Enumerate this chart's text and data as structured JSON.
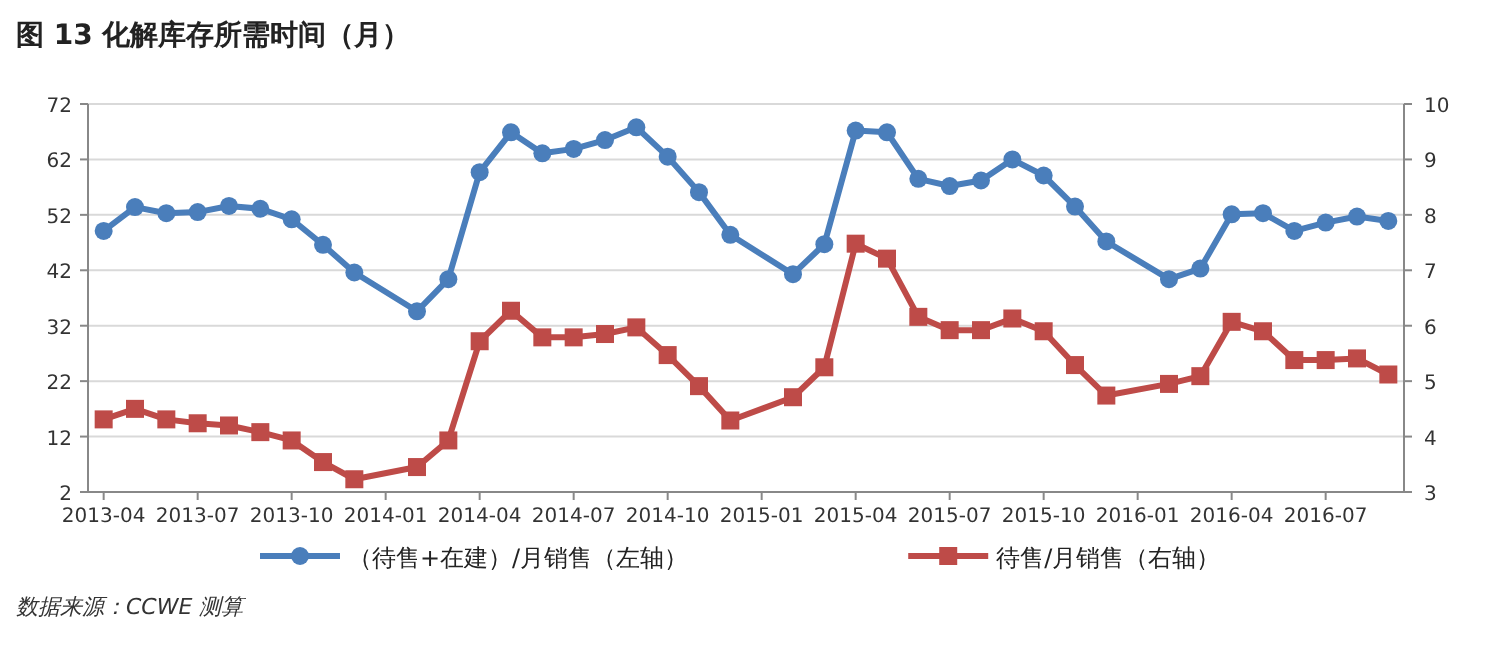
{
  "chart_data": {
    "type": "line",
    "title": "图 13 化解库存所需时间（月）",
    "x": [
      "2013-04",
      "2013-05",
      "2013-06",
      "2013-07",
      "2013-08",
      "2013-09",
      "2013-10",
      "2013-11",
      "2013-12",
      "2014-02",
      "2014-03",
      "2014-04",
      "2014-05",
      "2014-06",
      "2014-07",
      "2014-08",
      "2014-09",
      "2014-10",
      "2014-11",
      "2014-12",
      "2015-02",
      "2015-03",
      "2015-04",
      "2015-05",
      "2015-06",
      "2015-07",
      "2015-08",
      "2015-09",
      "2015-10",
      "2015-11",
      "2015-12",
      "2016-02",
      "2016-03",
      "2016-04",
      "2016-05",
      "2016-06",
      "2016-07",
      "2016-08",
      "2016-09"
    ],
    "xlim": [
      "2013-03-16",
      "2016-09-16"
    ],
    "xticks": [
      {
        "value": "2013-04",
        "label": "2013-04"
      },
      {
        "value": "2013-07",
        "label": "2013-07"
      },
      {
        "value": "2013-10",
        "label": "2013-10"
      },
      {
        "value": "2014-01",
        "label": "2014-01"
      },
      {
        "value": "2014-04",
        "label": "2014-04"
      },
      {
        "value": "2014-07",
        "label": "2014-07"
      },
      {
        "value": "2014-10",
        "label": "2014-10"
      },
      {
        "value": "2015-01",
        "label": "2015-01"
      },
      {
        "value": "2015-04",
        "label": "2015-04"
      },
      {
        "value": "2015-07",
        "label": "2015-07"
      },
      {
        "value": "2015-10",
        "label": "2015-10"
      },
      {
        "value": "2016-01",
        "label": "2016-01"
      },
      {
        "value": "2016-04",
        "label": "2016-04"
      },
      {
        "value": "2016-07",
        "label": "2016-07"
      }
    ],
    "ylim": [
      2,
      72
    ],
    "yticks": [
      2,
      12,
      22,
      32,
      42,
      52,
      62,
      72
    ],
    "y2lim": [
      3,
      10
    ],
    "y2ticks": [
      3,
      4,
      5,
      6,
      7,
      8,
      9,
      10
    ],
    "grid": "y",
    "legend": "bottom",
    "series": [
      {
        "name": "（待售+在建）/月销售（左轴）",
        "color": "#4a7ebb",
        "marker": "circle",
        "values": [
          49.1,
          53.4,
          52.3,
          52.5,
          53.6,
          53.1,
          51.2,
          46.6,
          41.6,
          34.6,
          40.4,
          59.7,
          66.9,
          63.1,
          63.9,
          65.5,
          67.8,
          62.5,
          56.1,
          48.4,
          41.3,
          46.7,
          67.2,
          66.9,
          58.5,
          57.2,
          58.2,
          62.0,
          59.1,
          53.5,
          47.2,
          40.4,
          42.3,
          52.1,
          52.3,
          49.1,
          50.6,
          51.7,
          50.9
        ]
      },
      {
        "name": "待售/月销售（右轴）",
        "color": "#be4b48",
        "marker": "square",
        "axis": "y2",
        "values": [
          4.31,
          4.5,
          4.31,
          4.24,
          4.2,
          4.08,
          3.93,
          3.54,
          3.23,
          3.45,
          3.93,
          5.72,
          6.27,
          5.79,
          5.79,
          5.85,
          5.97,
          5.47,
          4.91,
          4.29,
          4.71,
          5.25,
          7.48,
          7.21,
          6.16,
          5.92,
          5.92,
          6.13,
          5.9,
          5.29,
          4.74,
          4.95,
          5.09,
          6.07,
          5.9,
          5.38,
          5.38,
          5.41,
          5.12
        ]
      }
    ],
    "annotations": [
      "数据来源：CCWE 测算"
    ]
  }
}
